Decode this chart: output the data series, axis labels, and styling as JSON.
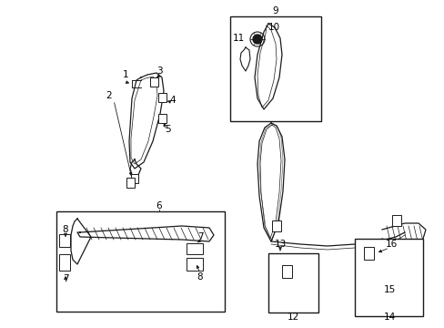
{
  "background_color": "#ffffff",
  "line_color": "#1a1a1a",
  "figure_size": [
    4.89,
    3.6
  ],
  "dpi": 100,
  "xlim": [
    0,
    489
  ],
  "ylim": [
    0,
    360
  ]
}
